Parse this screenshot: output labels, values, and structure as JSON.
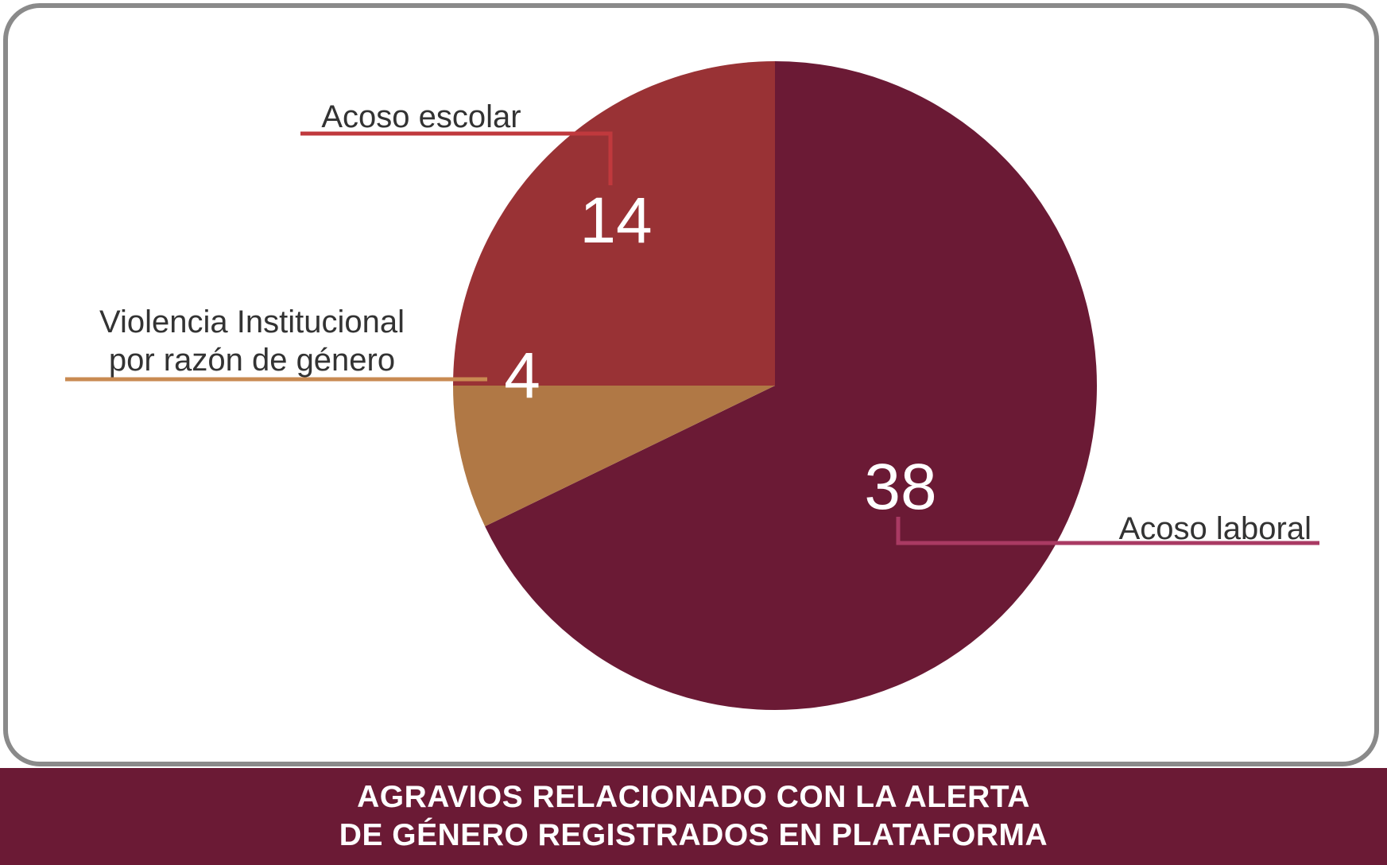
{
  "chart_data": {
    "type": "pie",
    "title": "AGRAVIOS RELACIONADO CON LA ALERTA DE GÉNERO REGISTRADOS EN PLATAFORMA",
    "title_lines": [
      "AGRAVIOS RELACIONADO CON LA ALERTA",
      "DE GÉNERO REGISTRADOS EN PLATAFORMA"
    ],
    "slices": [
      {
        "label": "Acoso laboral",
        "value": 38,
        "value_text": "38",
        "color": "#6b1a35",
        "leader_color": "#a93a63"
      },
      {
        "label": "Violencia Institucional por razón de género",
        "label_lines": [
          "Violencia Institucional",
          "por razón de género"
        ],
        "value": 4,
        "value_text": "4",
        "color": "#b07845",
        "leader_color": "#c98a52"
      },
      {
        "label": "Acoso escolar",
        "value": 14,
        "value_text": "14",
        "color": "#993235",
        "leader_color": "#c0393d"
      }
    ]
  },
  "colors": {
    "frame_border": "#8a8a8a",
    "footer_bg": "#6b1a35",
    "footer_text": "#ffffff",
    "label_text": "#333333"
  }
}
